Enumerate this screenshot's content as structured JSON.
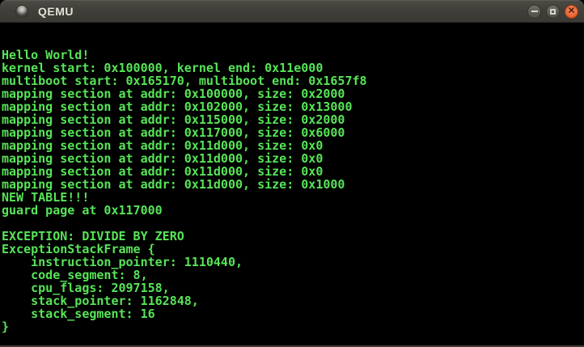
{
  "window": {
    "title": "QEMU",
    "icon": "qemu-window-icon",
    "controls": {
      "minimize_icon": "minimize-icon",
      "maximize_icon": "maximize-icon",
      "close_icon": "close-icon",
      "close_glyph": "✕"
    }
  },
  "colors": {
    "console_background": "#000000",
    "console_text_green": "#57e457",
    "titlebar_background": "#403f3a",
    "titlebar_text": "#e6e2da",
    "close_button_orange": "#ea6a3b"
  },
  "console": {
    "lines": [
      "",
      "",
      "Hello World!",
      "kernel start: 0x100000, kernel end: 0x11e000",
      "multiboot start: 0x165170, multiboot end: 0x1657f8",
      "mapping section at addr: 0x100000, size: 0x2000",
      "mapping section at addr: 0x102000, size: 0x13000",
      "mapping section at addr: 0x115000, size: 0x2000",
      "mapping section at addr: 0x117000, size: 0x6000",
      "mapping section at addr: 0x11d000, size: 0x0",
      "mapping section at addr: 0x11d000, size: 0x0",
      "mapping section at addr: 0x11d000, size: 0x0",
      "mapping section at addr: 0x11d000, size: 0x1000",
      "NEW TABLE!!!",
      "guard page at 0x117000",
      "",
      "EXCEPTION: DIVIDE BY ZERO",
      "ExceptionStackFrame {",
      "    instruction_pointer: 1110440,",
      "    code_segment: 8,",
      "    cpu_flags: 2097158,",
      "    stack_pointer: 1162848,",
      "    stack_segment: 16",
      "}",
      ""
    ]
  }
}
